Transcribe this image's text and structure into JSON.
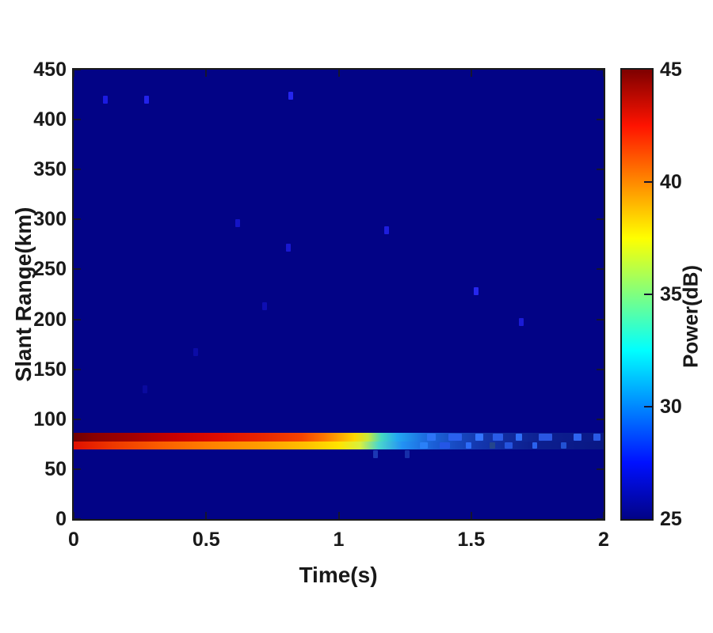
{
  "figure": {
    "xlabel": "Time(s)",
    "ylabel": "Slant Range(km)",
    "colorbar_label": "Power(dB)",
    "background": "#ffffff",
    "axis_color": "#1a1a1a",
    "tick_color": "#151530"
  },
  "chart_data": {
    "type": "heatmap",
    "title": "",
    "xlabel": "Time(s)",
    "ylabel": "Slant Range(km)",
    "xlim": [
      0,
      2
    ],
    "ylim": [
      0,
      450
    ],
    "x_ticks": [
      0,
      0.5,
      1,
      1.5,
      2
    ],
    "x_tick_labels": [
      "0",
      "0.5",
      "1",
      "1.5",
      "2"
    ],
    "y_ticks": [
      0,
      50,
      100,
      150,
      200,
      250,
      300,
      350,
      400,
      450
    ],
    "y_tick_labels": [
      "0",
      "50",
      "100",
      "150",
      "200",
      "250",
      "300",
      "350",
      "400",
      "450"
    ],
    "grid": false,
    "background_value_db": 25,
    "background_color": "#020386",
    "colorbar": {
      "label": "Power(dB)",
      "min": 25,
      "max": 45,
      "ticks": [
        25,
        30,
        35,
        40,
        45
      ],
      "inner_tick_values": [
        30,
        35,
        40
      ],
      "colormap": "jet",
      "stops": [
        {
          "v": 25.0,
          "c": "#020386"
        },
        {
          "v": 27.5,
          "c": "#0010ff"
        },
        {
          "v": 32.5,
          "c": "#00ffff"
        },
        {
          "v": 37.5,
          "c": "#ffff00"
        },
        {
          "v": 42.5,
          "c": "#ff1300"
        },
        {
          "v": 45.0,
          "c": "#7e0000"
        }
      ]
    },
    "echo_band": {
      "description": "strong echo band near 70-88 km, power decays from ~45 dB at t=0 to ~27 dB at t=2",
      "rows": [
        {
          "range_top_km": 86,
          "range_bottom_km": 78,
          "stops": [
            [
              0.0,
              "#6e0002"
            ],
            [
              0.08,
              "#8a0000"
            ],
            [
              0.22,
              "#a40000"
            ],
            [
              0.38,
              "#c80000"
            ],
            [
              0.55,
              "#e00d00"
            ],
            [
              0.72,
              "#e82800"
            ],
            [
              0.86,
              "#f54400"
            ],
            [
              0.94,
              "#ff7300"
            ],
            [
              1.0,
              "#ffa300"
            ],
            [
              1.06,
              "#ffd600"
            ],
            [
              1.11,
              "#c9e93a"
            ],
            [
              1.16,
              "#46d9c0"
            ],
            [
              1.22,
              "#23a9f2"
            ],
            [
              1.32,
              "#1d6fe2"
            ],
            [
              1.45,
              "#1748c0"
            ],
            [
              1.6,
              "#122ea2"
            ],
            [
              1.8,
              "#0c1e8e"
            ],
            [
              2.0,
              "#0a1888"
            ]
          ]
        },
        {
          "range_top_km": 78,
          "range_bottom_km": 70,
          "stops": [
            [
              0.0,
              "#e01000"
            ],
            [
              0.15,
              "#ee3800"
            ],
            [
              0.32,
              "#fa5c00"
            ],
            [
              0.5,
              "#ff7e00"
            ],
            [
              0.7,
              "#ff9c00"
            ],
            [
              0.88,
              "#ffc100"
            ],
            [
              1.0,
              "#ffe400"
            ],
            [
              1.08,
              "#d9f03e"
            ],
            [
              1.15,
              "#4cd8cc"
            ],
            [
              1.24,
              "#2392f4"
            ],
            [
              1.36,
              "#1b5ed6"
            ],
            [
              1.52,
              "#1438b0"
            ],
            [
              1.72,
              "#0d2090"
            ],
            [
              2.0,
              "#091784"
            ]
          ]
        }
      ],
      "patches": [
        {
          "row": 0,
          "t": 1.35,
          "w": 0.035,
          "color": "#2d74f6"
        },
        {
          "row": 0,
          "t": 1.44,
          "w": 0.05,
          "color": "#2a60ee"
        },
        {
          "row": 0,
          "t": 1.53,
          "w": 0.03,
          "color": "#3374ff"
        },
        {
          "row": 0,
          "t": 1.6,
          "w": 0.04,
          "color": "#2a5ce8"
        },
        {
          "row": 0,
          "t": 1.68,
          "w": 0.025,
          "color": "#2f6ef8"
        },
        {
          "row": 0,
          "t": 1.78,
          "w": 0.05,
          "color": "#2956e2"
        },
        {
          "row": 0,
          "t": 1.9,
          "w": 0.03,
          "color": "#2e64f0"
        },
        {
          "row": 0,
          "t": 1.975,
          "w": 0.025,
          "color": "#2a5ae6"
        },
        {
          "row": 1,
          "t": 1.32,
          "w": 0.03,
          "color": "#2a80f8"
        },
        {
          "row": 1,
          "t": 1.4,
          "w": 0.04,
          "color": "#2456e6"
        },
        {
          "row": 1,
          "t": 1.49,
          "w": 0.02,
          "color": "#2d6cf8"
        },
        {
          "row": 1,
          "t": 1.58,
          "w": 0.02,
          "color": "#24458c"
        },
        {
          "row": 1,
          "t": 1.64,
          "w": 0.03,
          "color": "#2554de"
        },
        {
          "row": 1,
          "t": 1.74,
          "w": 0.02,
          "color": "#2a62ee"
        },
        {
          "row": 1,
          "t": 1.85,
          "w": 0.02,
          "color": "#2252d4"
        }
      ]
    },
    "speckles": [
      {
        "t": 0.12,
        "range_km": 420,
        "color": "#1b1be2"
      },
      {
        "t": 0.275,
        "range_km": 420,
        "color": "#2222ea"
      },
      {
        "t": 0.82,
        "range_km": 424,
        "color": "#2525ee"
      },
      {
        "t": 0.62,
        "range_km": 296,
        "color": "#1414c6"
      },
      {
        "t": 0.81,
        "range_km": 272,
        "color": "#1818d0"
      },
      {
        "t": 1.18,
        "range_km": 289,
        "color": "#1d1dde"
      },
      {
        "t": 0.72,
        "range_km": 213,
        "color": "#0e0eb2"
      },
      {
        "t": 1.52,
        "range_km": 228,
        "color": "#2626ee"
      },
      {
        "t": 1.69,
        "range_km": 197,
        "color": "#1b1bd6"
      },
      {
        "t": 0.46,
        "range_km": 167,
        "color": "#0b0ba6"
      },
      {
        "t": 0.27,
        "range_km": 130,
        "color": "#0a0a9e"
      },
      {
        "t": 1.14,
        "range_km": 65,
        "color": "#1b37b4"
      },
      {
        "t": 1.26,
        "range_km": 65,
        "color": "#162eaa"
      }
    ]
  }
}
